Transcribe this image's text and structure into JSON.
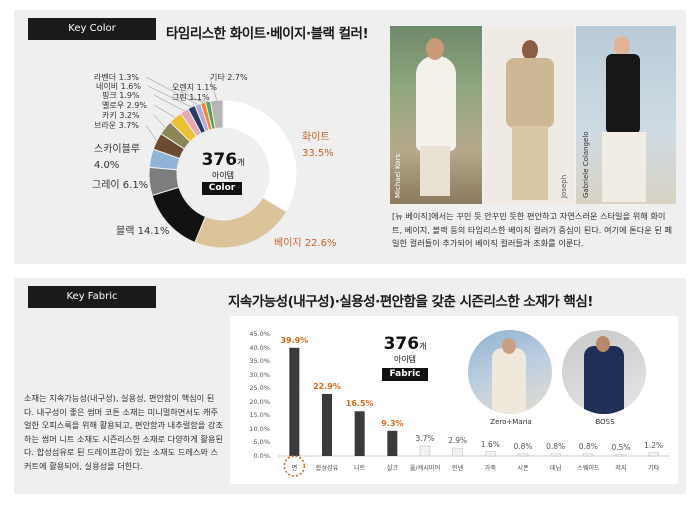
{
  "color_section": {
    "tag": "Key Color",
    "title": "타임리스한 화이트·베이지·블랙 컬러!",
    "center": {
      "count": "376",
      "unit": "개",
      "label": "아이템",
      "box": "Color"
    },
    "caption": "[뉴 베이직]에서는 꾸민 듯 안꾸민 듯한 편안하고 자연스러운 스타일을 위해 화이트, 베이지, 블랙 등의 타임리스한 베이직 컬러가 중심이 된다. 여기에 톤다운 된 페일한 컬러들이 추가되어 베이직 컬러들과 조화를 이룬다.",
    "photo_credits": [
      "Michael Kors",
      "Joseph",
      "Gabriele Colangelo"
    ]
  },
  "fabric_section": {
    "tag": "Key Fabric",
    "title": "지속가능성(내구성)·실용성·편안함을 갖춘 시즌리스한 소재가 핵심!",
    "center": {
      "count": "376",
      "unit": "개",
      "label": "아이템",
      "box": "Fabric"
    },
    "body": "소재는 지속가능성(내구성), 실용성, 편안함이 핵심이 된다. 내구성이 좋은 썸머 코튼 소재는 미니멀하면서도 캐주얼한 오피스룩을 위해 활용되고, 편안함과 내추럴함을 강조하는 썸머 니트 소재도 시즌리스한 소재로 다양하게 활용된다. 합성섬유로 된 드레이프감이 있는 소재도 드레스와 스커트에 활용되어, 실용성을 더한다.",
    "brands": [
      "Zero+Maria",
      "BOSS"
    ]
  },
  "chart_data": [
    {
      "type": "pie",
      "title": "",
      "slices": [
        {
          "name": "화이트",
          "value": 33.5,
          "label": "화이트",
          "pct": "33.5%",
          "color": "#ffffff"
        },
        {
          "name": "베이지",
          "value": 22.6,
          "label": "베이지 22.6%",
          "color": "#dcc49a"
        },
        {
          "name": "블랙",
          "value": 14.1,
          "label": "블랙 14.1%",
          "color": "#121212"
        },
        {
          "name": "그레이",
          "value": 6.1,
          "label": "그레이 6.1%",
          "color": "#7d7d7d"
        },
        {
          "name": "스카이블루",
          "value": 4.0,
          "label": "스카이블루",
          "pct": "4.0%",
          "color": "#8fb4d8"
        },
        {
          "name": "브라운",
          "value": 3.7,
          "label": "브라운 3.7%",
          "color": "#6b4c33"
        },
        {
          "name": "카키",
          "value": 3.2,
          "label": "카키 3.2%",
          "color": "#8a8655"
        },
        {
          "name": "옐로우",
          "value": 2.9,
          "label": "옐로우 2.9%",
          "color": "#e8c233"
        },
        {
          "name": "핑크",
          "value": 1.9,
          "label": "핑크 1.9%",
          "color": "#e7a8b6"
        },
        {
          "name": "네이비",
          "value": 1.6,
          "label": "네이비 1.6%",
          "color": "#263a63"
        },
        {
          "name": "라벤더",
          "value": 1.3,
          "label": "라벤더 1.3%",
          "color": "#b9a7d6"
        },
        {
          "name": "오렌지",
          "value": 1.1,
          "label": "오렌지 1.1%",
          "color": "#e88a3c"
        },
        {
          "name": "그린",
          "value": 1.1,
          "label": "그린 1.1%",
          "color": "#5aa05a"
        },
        {
          "name": "기타",
          "value": 2.7,
          "label": "기타 2.7%",
          "color": "#b5b5b5"
        }
      ]
    },
    {
      "type": "bar",
      "title": "",
      "categories": [
        "면",
        "합성섬유",
        "니트",
        "실크",
        "울/캐시미어",
        "린넨",
        "가죽",
        "시폰",
        "데님",
        "스웨이드",
        "저지",
        "기타"
      ],
      "values": [
        39.9,
        22.9,
        16.5,
        9.3,
        3.7,
        2.9,
        1.6,
        0.8,
        0.8,
        0.8,
        0.5,
        1.2
      ],
      "value_labels": [
        "39.9%",
        "22.9%",
        "16.5%",
        "9.3%",
        "3.7%",
        "2.9%",
        "1.6%",
        "0.8%",
        "0.8%",
        "0.8%",
        "0.5%",
        "1.2%"
      ],
      "yticks": [
        "0.0%",
        "5.0%",
        "10.0%",
        "15.0%",
        "20.0%",
        "25.0%",
        "30.0%",
        "35.0%",
        "40.0%",
        "45.0%"
      ],
      "ylim": [
        0,
        45
      ],
      "highlight_color": "#d2691e",
      "bar_color": "#3a3a3a"
    }
  ]
}
